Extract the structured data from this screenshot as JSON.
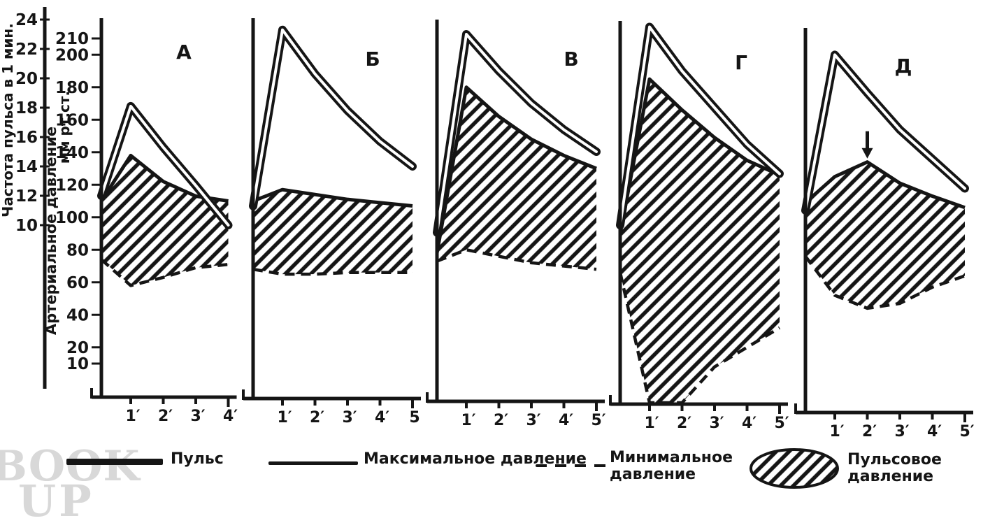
{
  "axes": {
    "pulse": {
      "title": "Частота пульса в 1 мин.",
      "ticks": [
        24,
        22,
        20,
        18,
        16,
        14,
        12,
        10
      ],
      "range": [
        10,
        24
      ]
    },
    "pressure": {
      "title_line1": "Артериальное давление",
      "title_line2": "мм рт.ст.",
      "ticks": [
        210,
        200,
        180,
        160,
        140,
        120,
        100,
        80,
        60,
        40,
        20,
        10
      ],
      "range": [
        10,
        210
      ]
    }
  },
  "legend": {
    "items": [
      {
        "name": "pulse",
        "swatch": "thick-line",
        "line1": "Пульс",
        "line2": ""
      },
      {
        "name": "max-pressure",
        "swatch": "thin-line",
        "line1": "Максимальное давление",
        "line2": ""
      },
      {
        "name": "min-pressure",
        "swatch": "dashed-line",
        "line1": "Минимальное",
        "line2": "давление"
      },
      {
        "name": "pulse-pressure",
        "swatch": "hatched-ellipse",
        "line1": "Пульсовое",
        "line2": "давление"
      }
    ]
  },
  "watermark": {
    "line1": "BOOK",
    "line2": "UP"
  },
  "chart_data": {
    "type": "line",
    "x_unit": "minutes",
    "grid": false,
    "legend_position": "bottom",
    "pulse_ylim": [
      10,
      24
    ],
    "pressure_ylim": [
      10,
      210
    ],
    "series_names": [
      "pulse",
      "max_pressure",
      "min_pressure",
      "pulse_pressure_area"
    ],
    "panels": [
      {
        "label": "А",
        "minutes": [
          0,
          1,
          2,
          3,
          4
        ],
        "x_tick_labels": [
          "1′",
          "2′",
          "3′",
          "4′"
        ],
        "series": {
          "pulse": [
            12,
            18.1,
            15.3,
            12.7,
            10
          ],
          "max_pressure": [
            110,
            138,
            122,
            113,
            110
          ],
          "min_pressure": [
            74,
            58,
            63,
            69,
            71
          ]
        }
      },
      {
        "label": "Б",
        "minutes": [
          0,
          1,
          2,
          3,
          4,
          5
        ],
        "x_tick_labels": [
          "1′",
          "2′",
          "3′",
          "4′",
          "5"
        ],
        "series": {
          "pulse": [
            11.3,
            23.3,
            20.3,
            17.8,
            15.7,
            14
          ],
          "max_pressure": [
            110,
            117,
            114,
            111,
            109,
            107
          ],
          "min_pressure": [
            68,
            65,
            65,
            66,
            66,
            66
          ]
        }
      },
      {
        "label": "В",
        "minutes": [
          0,
          1,
          2,
          3,
          4,
          5
        ],
        "x_tick_labels": [
          "1′",
          "2′",
          "3′",
          "4′",
          "5′"
        ],
        "series": {
          "pulse": [
            9.5,
            23,
            20.5,
            18.3,
            16.5,
            15
          ],
          "max_pressure": [
            78,
            180,
            162,
            148,
            138,
            130
          ],
          "min_pressure": [
            73,
            80,
            76,
            72,
            70,
            68
          ]
        }
      },
      {
        "label": "Г",
        "minutes": [
          0,
          1,
          2,
          3,
          4,
          5
        ],
        "x_tick_labels": [
          "1′",
          "2′",
          "3′",
          "4′",
          "5′"
        ],
        "series": {
          "pulse": [
            10,
            23.5,
            20.5,
            18,
            15.5,
            13.5
          ],
          "max_pressure": [
            90,
            185,
            166,
            149,
            135,
            126
          ],
          "min_pressure": [
            66,
            0,
            0,
            8,
            20,
            32
          ]
        }
      },
      {
        "label": "Д",
        "minutes": [
          0,
          1,
          2,
          3,
          4,
          5
        ],
        "x_tick_labels": [
          "1′",
          "2′",
          "3′",
          "4′",
          "5′"
        ],
        "series": {
          "pulse": [
            11,
            21.6,
            19,
            16.5,
            14.5,
            12.5
          ],
          "max_pressure": [
            109,
            125,
            134,
            121,
            113,
            106
          ],
          "min_pressure": [
            76,
            52,
            44,
            47,
            57,
            64
          ]
        },
        "annotation": {
          "type": "down-arrow",
          "at_minute": 2,
          "series": "max_pressure"
        }
      }
    ]
  }
}
